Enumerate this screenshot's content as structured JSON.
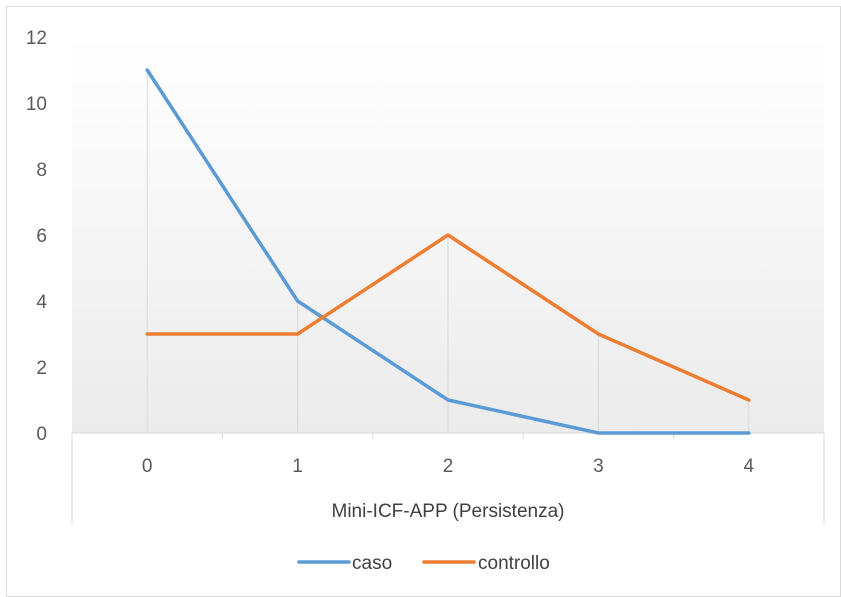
{
  "chart_data": {
    "type": "line",
    "xlabel": "Mini-ICF-APP (Persistenza)",
    "ylabel": "",
    "title": "",
    "categories": [
      "0",
      "1",
      "2",
      "3",
      "4"
    ],
    "ylim": [
      0,
      12
    ],
    "yticks": [
      0,
      2,
      4,
      6,
      8,
      10,
      12
    ],
    "grid": "vertical drop lines at categories",
    "legend": "bottom",
    "series": [
      {
        "name": "caso",
        "values": [
          11,
          4,
          1,
          0,
          0
        ],
        "color": "#5B9BD5"
      },
      {
        "name": "controllo",
        "values": [
          3,
          3,
          6,
          3,
          1
        ],
        "color": "#ED7D31"
      }
    ]
  }
}
